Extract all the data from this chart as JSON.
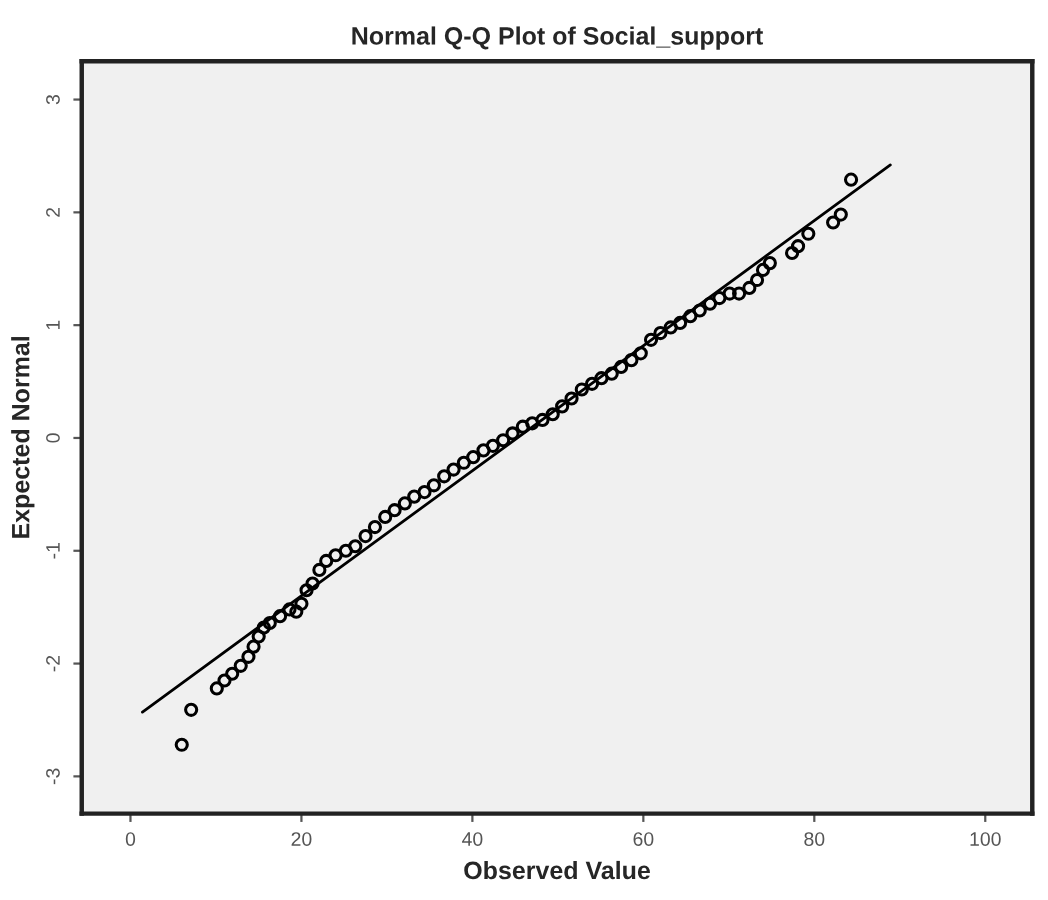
{
  "chart_data": {
    "type": "scatter",
    "title": "Normal Q-Q Plot of Social_support",
    "xlabel": "Observed Value",
    "ylabel": "Expected Normal",
    "xlim": [
      -5.7,
      105.5
    ],
    "ylim": [
      -3.33,
      3.34
    ],
    "xticks": [
      0,
      20,
      40,
      60,
      80,
      100
    ],
    "yticks": [
      -3,
      -2,
      -1,
      0,
      1,
      2,
      3
    ],
    "grid": false,
    "legend": false,
    "marker": "circle",
    "series": [
      {
        "color": "#000000",
        "x": [
          6.0,
          7.1,
          10.1,
          11.0,
          11.9,
          12.9,
          13.8,
          14.4,
          15.0,
          15.6,
          16.3,
          17.5,
          18.6,
          19.4,
          20.0,
          20.6,
          21.3,
          22.1,
          22.9,
          24.0,
          25.2,
          26.3,
          27.5,
          28.6,
          29.8,
          30.9,
          32.1,
          33.2,
          34.4,
          35.5,
          36.7,
          37.8,
          39.0,
          40.1,
          41.3,
          42.4,
          43.6,
          44.7,
          45.9,
          47.0,
          48.2,
          49.4,
          50.5,
          51.6,
          52.8,
          54.0,
          55.1,
          56.3,
          57.4,
          58.6,
          59.7,
          60.9,
          62.0,
          63.2,
          64.3,
          65.5,
          66.6,
          67.8,
          68.9,
          70.1,
          71.2,
          72.4,
          73.3,
          74.0,
          74.8,
          77.4,
          78.1,
          79.3,
          82.2,
          83.1,
          84.3
        ],
        "values": [
          -2.72,
          -2.41,
          -2.22,
          -2.15,
          -2.09,
          -2.02,
          -1.94,
          -1.85,
          -1.76,
          -1.68,
          -1.64,
          -1.58,
          -1.52,
          -1.54,
          -1.47,
          -1.35,
          -1.29,
          -1.17,
          -1.09,
          -1.04,
          -1.0,
          -0.96,
          -0.87,
          -0.79,
          -0.7,
          -0.64,
          -0.58,
          -0.52,
          -0.48,
          -0.42,
          -0.34,
          -0.28,
          -0.22,
          -0.17,
          -0.11,
          -0.07,
          -0.02,
          0.04,
          0.1,
          0.13,
          0.16,
          0.21,
          0.28,
          0.35,
          0.43,
          0.48,
          0.53,
          0.57,
          0.63,
          0.69,
          0.75,
          0.87,
          0.93,
          0.98,
          1.02,
          1.08,
          1.13,
          1.19,
          1.24,
          1.28,
          1.28,
          1.33,
          1.4,
          1.49,
          1.55,
          1.64,
          1.7,
          1.81,
          1.91,
          1.98,
          2.29
        ]
      },
      {
        "type": "line",
        "color": "#000000",
        "x": [
          1.4,
          88.9
        ],
        "values": [
          -2.43,
          2.42
        ],
        "line_style": "solid",
        "marker": "none"
      }
    ]
  }
}
